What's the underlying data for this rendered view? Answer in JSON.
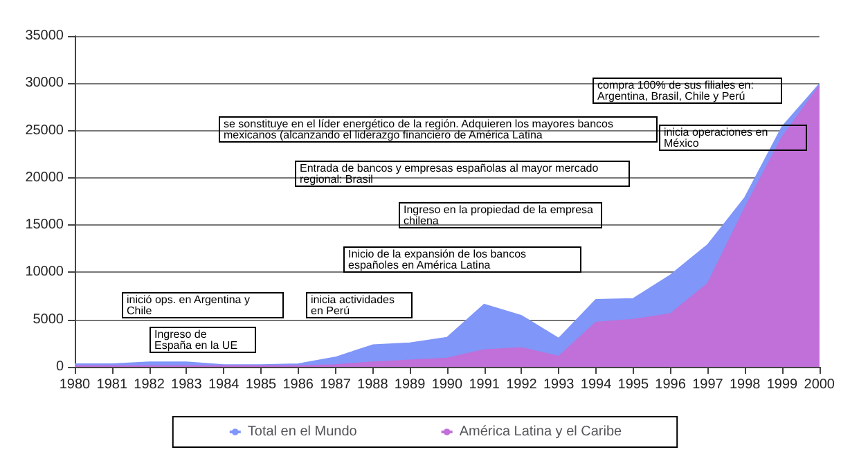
{
  "chart_data": {
    "type": "area",
    "categories": [
      "1980",
      "1981",
      "1982",
      "1983",
      "1984",
      "1985",
      "1986",
      "1987",
      "1988",
      "1989",
      "1990",
      "1991",
      "1992",
      "1993",
      "1994",
      "1995",
      "1996",
      "1997",
      "1998",
      "1999",
      "2000"
    ],
    "series": [
      {
        "name": "Total en el Mundo",
        "color": "#8096f8",
        "values": [
          300,
          300,
          500,
          500,
          200,
          200,
          300,
          1000,
          2300,
          2500,
          3100,
          6600,
          5400,
          3000,
          7100,
          7200,
          9700,
          12900,
          17900,
          25400,
          29900
        ]
      },
      {
        "name": "América Latina y el Caribe",
        "color": "#c070d8",
        "values": [
          100,
          100,
          100,
          100,
          100,
          100,
          100,
          200,
          500,
          700,
          900,
          1800,
          2000,
          1100,
          4700,
          5000,
          5600,
          8800,
          16800,
          24300,
          29700
        ]
      }
    ],
    "ylim": [
      0,
      35000
    ],
    "yticks": [
      0,
      5000,
      10000,
      15000,
      20000,
      25000,
      30000,
      35000
    ],
    "grid": "y",
    "legend": "bottom",
    "annotations": [
      "Ingreso de España en la UE",
      "inició ops. en Argentina y Chile",
      "inicia actividades en Perú",
      "Inicio de la expansión de los bancos españoles en América Latina",
      "Ingreso en la propiedad de la empresa chilena",
      "Entrada de bancos y empresas españolas al mayor mercado regional: Brasil",
      "se sonstituye en el líder energético de la región. Adquieren los mayores bancos mexicanos (alcanzando el liderazgo financiero de América Latina",
      "inicia operaciones en México",
      "compra 100% de sus filiales en: Argentina, Brasil, Chile y Perú"
    ]
  }
}
